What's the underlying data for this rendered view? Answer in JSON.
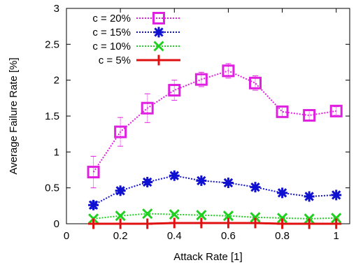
{
  "chart_data": {
    "type": "line",
    "xlabel": "Attack Rate [1]",
    "ylabel": "Average Failure Rate [%]",
    "xlim": [
      0,
      1.05
    ],
    "ylim": [
      0,
      3
    ],
    "xticks": [
      0,
      0.2,
      0.4,
      0.6,
      0.8,
      1
    ],
    "yticks": [
      0,
      0.5,
      1,
      1.5,
      2,
      2.5,
      3
    ],
    "xtick_labels": [
      "0",
      "0.2",
      "0.4",
      "0.6",
      "0.8",
      "1"
    ],
    "ytick_labels": [
      "0",
      "0.5",
      "1",
      "1.5",
      "2",
      "2.5",
      "3"
    ],
    "x": [
      0.1,
      0.2,
      0.3,
      0.4,
      0.5,
      0.6,
      0.7,
      0.8,
      0.9,
      1.0
    ],
    "legend_position": "top-left",
    "grid": false,
    "series": [
      {
        "name": "c = 20%",
        "color": "#e020e0",
        "marker": "square",
        "values": [
          0.72,
          1.28,
          1.61,
          1.86,
          2.01,
          2.13,
          1.96,
          1.56,
          1.51,
          1.57
        ],
        "error": [
          0.22,
          0.2,
          0.2,
          0.14,
          0.1,
          0.1,
          0.1,
          0.07,
          0.07,
          0.06
        ]
      },
      {
        "name": "c = 15%",
        "color": "#1010d0",
        "marker": "asterisk",
        "values": [
          0.26,
          0.46,
          0.58,
          0.67,
          0.6,
          0.57,
          0.51,
          0.43,
          0.38,
          0.4
        ],
        "error": [
          0.05,
          0.04,
          0.04,
          0.04,
          0.03,
          0.03,
          0.03,
          0.02,
          0.02,
          0.02
        ]
      },
      {
        "name": "c = 10%",
        "color": "#20d020",
        "marker": "x",
        "values": [
          0.07,
          0.11,
          0.14,
          0.13,
          0.12,
          0.11,
          0.09,
          0.08,
          0.07,
          0.08
        ],
        "error": [
          0.02,
          0.02,
          0.02,
          0.02,
          0.02,
          0.02,
          0.01,
          0.01,
          0.01,
          0.01
        ]
      },
      {
        "name": "c = 5%",
        "color": "#e01010",
        "marker": "plus",
        "values": [
          0.0,
          0.0,
          0.0,
          0.01,
          0.01,
          0.01,
          0.01,
          0.0,
          0.0,
          0.0
        ],
        "error": [
          0,
          0,
          0,
          0,
          0,
          0,
          0,
          0,
          0,
          0
        ]
      }
    ]
  }
}
